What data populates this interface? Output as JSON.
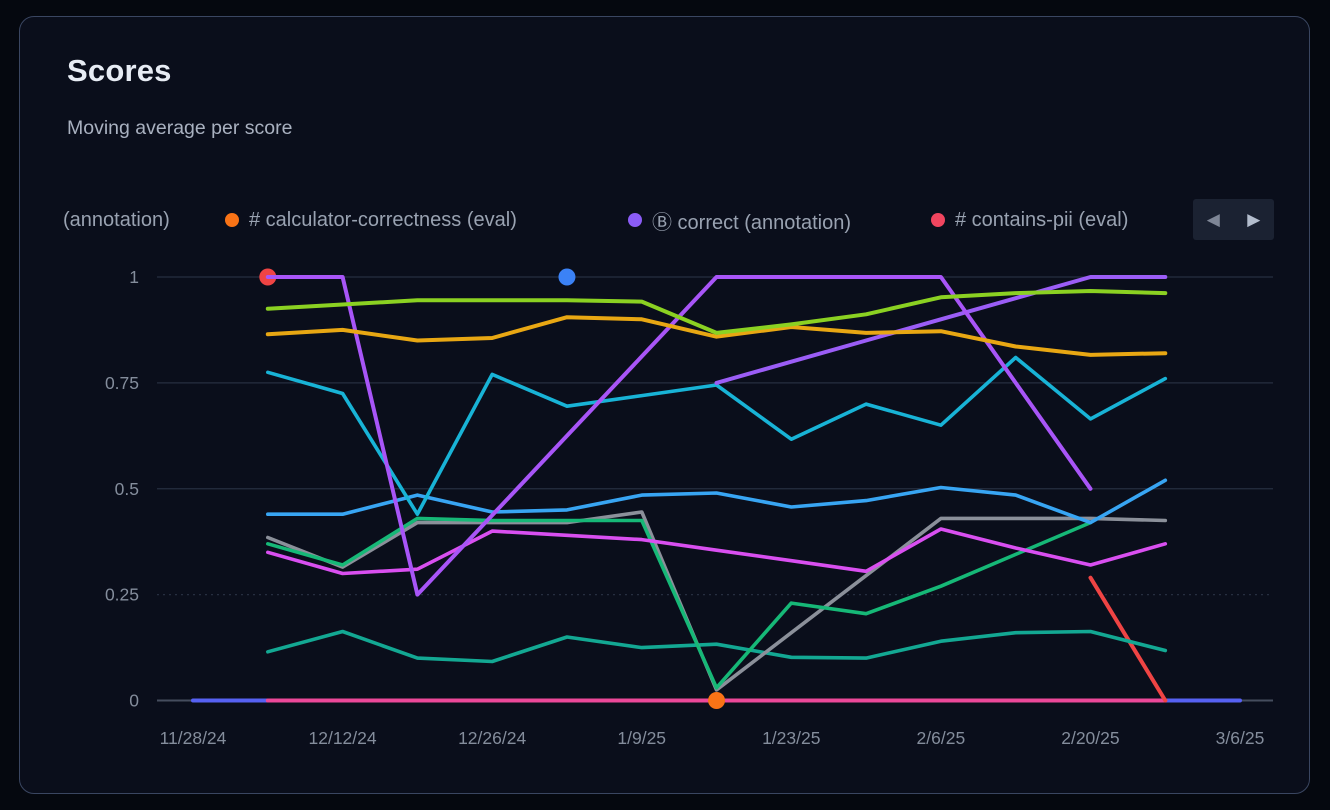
{
  "card": {
    "title": "Scores",
    "subtitle": "Moving average per score"
  },
  "legend": {
    "items": [
      {
        "label": "(annotation)",
        "color": null,
        "truncated": true
      },
      {
        "label": "# calculator-correctness (eval)",
        "color": "#f97316"
      },
      {
        "label": "Ⓑ correct (annotation)",
        "color": "#8b5cf6"
      },
      {
        "label": "# contains-pii (eval)",
        "color": "#f1455f"
      }
    ],
    "nav": {
      "prev_icon": "◀",
      "next_icon": "▶"
    }
  },
  "chart_data": {
    "type": "line",
    "title": "Scores",
    "ylabel": "",
    "xlabel": "",
    "ylim": [
      0,
      1
    ],
    "grid": true,
    "y_ticks": [
      {
        "label": "1",
        "value": 1
      },
      {
        "label": "0.75",
        "value": 0.75
      },
      {
        "label": "0.5",
        "value": 0.5
      },
      {
        "label": "0.25",
        "value": 0.25,
        "dotted": true
      },
      {
        "label": "0",
        "value": 0,
        "baseline": true
      }
    ],
    "x_tick_labels": [
      "11/28/24",
      "12/12/24",
      "12/26/24",
      "1/9/25",
      "1/23/25",
      "2/6/25",
      "2/20/25",
      "3/6/25"
    ],
    "x_dates": [
      "12/5/24",
      "12/12/24",
      "12/19/24",
      "12/26/24",
      "1/2/25",
      "1/9/25",
      "1/16/25",
      "1/23/25",
      "1/30/25",
      "2/6/25",
      "2/13/25",
      "2/20/25",
      "2/27/25"
    ],
    "series": [
      {
        "id": "pink-zero",
        "color": "#ec4899",
        "width": 4,
        "values": [
          0,
          0,
          0,
          0,
          0,
          0,
          0,
          0,
          0,
          0,
          0,
          0,
          0
        ]
      },
      {
        "id": "red-pii",
        "color": "#ef4444",
        "width": 4,
        "values": [
          1,
          null,
          null,
          null,
          null,
          null,
          null,
          null,
          null,
          null,
          null,
          0.29,
          0
        ]
      },
      {
        "id": "teal-low",
        "color": "#13a893",
        "width": 3.6,
        "values": [
          0.115,
          0.163,
          0.1,
          0.092,
          0.15,
          0.125,
          0.133,
          0.102,
          0.1,
          0.14,
          0.16,
          0.163,
          0.118
        ]
      },
      {
        "id": "gray",
        "color": "#8b909a",
        "width": 3.6,
        "values": [
          0.385,
          0.315,
          0.42,
          0.42,
          0.42,
          0.445,
          0.025,
          0.16,
          0.295,
          0.43,
          0.43,
          0.43,
          0.425
        ]
      },
      {
        "id": "emerald",
        "color": "#16b877",
        "width": 3.6,
        "values": [
          0.37,
          0.32,
          0.43,
          0.425,
          0.425,
          0.425,
          0.03,
          0.23,
          0.205,
          0.27,
          0.345,
          0.42,
          null
        ]
      },
      {
        "id": "magenta",
        "color": "#d94ff0",
        "width": 3.6,
        "values": [
          0.35,
          0.3,
          0.31,
          0.4,
          0.39,
          0.38,
          0.355,
          0.33,
          0.305,
          0.405,
          0.36,
          0.32,
          0.37
        ]
      },
      {
        "id": "sky-blue",
        "color": "#38a5f3",
        "width": 3.6,
        "values": [
          0.44,
          0.44,
          0.485,
          0.445,
          0.45,
          0.485,
          0.49,
          0.457,
          0.472,
          0.503,
          0.485,
          0.42,
          0.52
        ]
      },
      {
        "id": "cyan",
        "color": "#18b3d6",
        "width": 3.6,
        "values": [
          0.775,
          0.725,
          0.44,
          0.77,
          0.695,
          0.72,
          0.745,
          0.617,
          0.7,
          0.65,
          0.81,
          0.665,
          0.76
        ]
      },
      {
        "id": "violet-b",
        "color": "#9b5df6",
        "width": 4,
        "values": [
          null,
          null,
          null,
          null,
          null,
          null,
          0.75,
          0.8,
          0.85,
          0.9,
          0.95,
          1,
          1
        ]
      },
      {
        "id": "violet-a",
        "color": "#a855f7",
        "width": 4,
        "values": [
          1,
          1,
          0.25,
          0.4375,
          0.625,
          0.8125,
          1,
          1,
          1,
          1,
          0.75,
          0.5,
          null
        ]
      },
      {
        "id": "amber",
        "color": "#e8a713",
        "width": 4,
        "values": [
          0.865,
          0.875,
          0.85,
          0.856,
          0.905,
          0.9,
          0.859,
          0.882,
          0.868,
          0.872,
          0.836,
          0.816,
          0.82
        ]
      },
      {
        "id": "lime",
        "color": "#8bd122",
        "width": 4,
        "values": [
          0.925,
          0.935,
          0.945,
          0.945,
          0.945,
          0.942,
          0.868,
          0.888,
          0.912,
          0.952,
          0.962,
          0.967,
          0.962
        ]
      }
    ],
    "flat_full_span_series": {
      "id": "indigo-zero",
      "color": "#5661f2",
      "width": 4,
      "value": 0,
      "from_tick": 0,
      "to_tick": 7
    },
    "markers": [
      {
        "date": "1/2/25",
        "value": 1,
        "color": "#3b82f6",
        "name": "blue-point"
      },
      {
        "date": "1/16/25",
        "value": 0,
        "color": "#f97316",
        "name": "orange-point"
      }
    ],
    "legend_position": "top"
  }
}
